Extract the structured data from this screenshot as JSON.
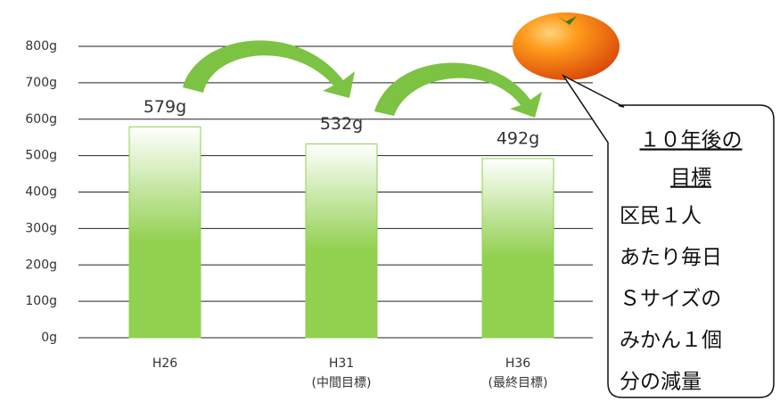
{
  "chart_data": {
    "type": "bar",
    "categories": [
      "H26",
      "H31\n(中間目標)",
      "H36\n(最終目標)"
    ],
    "values": [
      579,
      532,
      492
    ],
    "value_labels": [
      "579g",
      "532g",
      "492g"
    ],
    "color": "#92d050",
    "ylim": [
      0,
      800
    ],
    "yticks": [
      {
        "value": 0,
        "label": "0g"
      },
      {
        "value": 100,
        "label": "100g"
      },
      {
        "value": 200,
        "label": "200g"
      },
      {
        "value": 300,
        "label": "300g"
      },
      {
        "value": 400,
        "label": "400g"
      },
      {
        "value": 500,
        "label": "500g"
      },
      {
        "value": 600,
        "label": "600g"
      },
      {
        "value": 700,
        "label": "700g"
      },
      {
        "value": 800,
        "label": "800g"
      }
    ],
    "grid": true,
    "annotations": {
      "heading": [
        "１０年後の",
        "目標"
      ],
      "body": [
        "区民１人",
        "あたり毎日",
        "Ｓサイズの",
        "みかん１個",
        "分の減量"
      ]
    }
  }
}
